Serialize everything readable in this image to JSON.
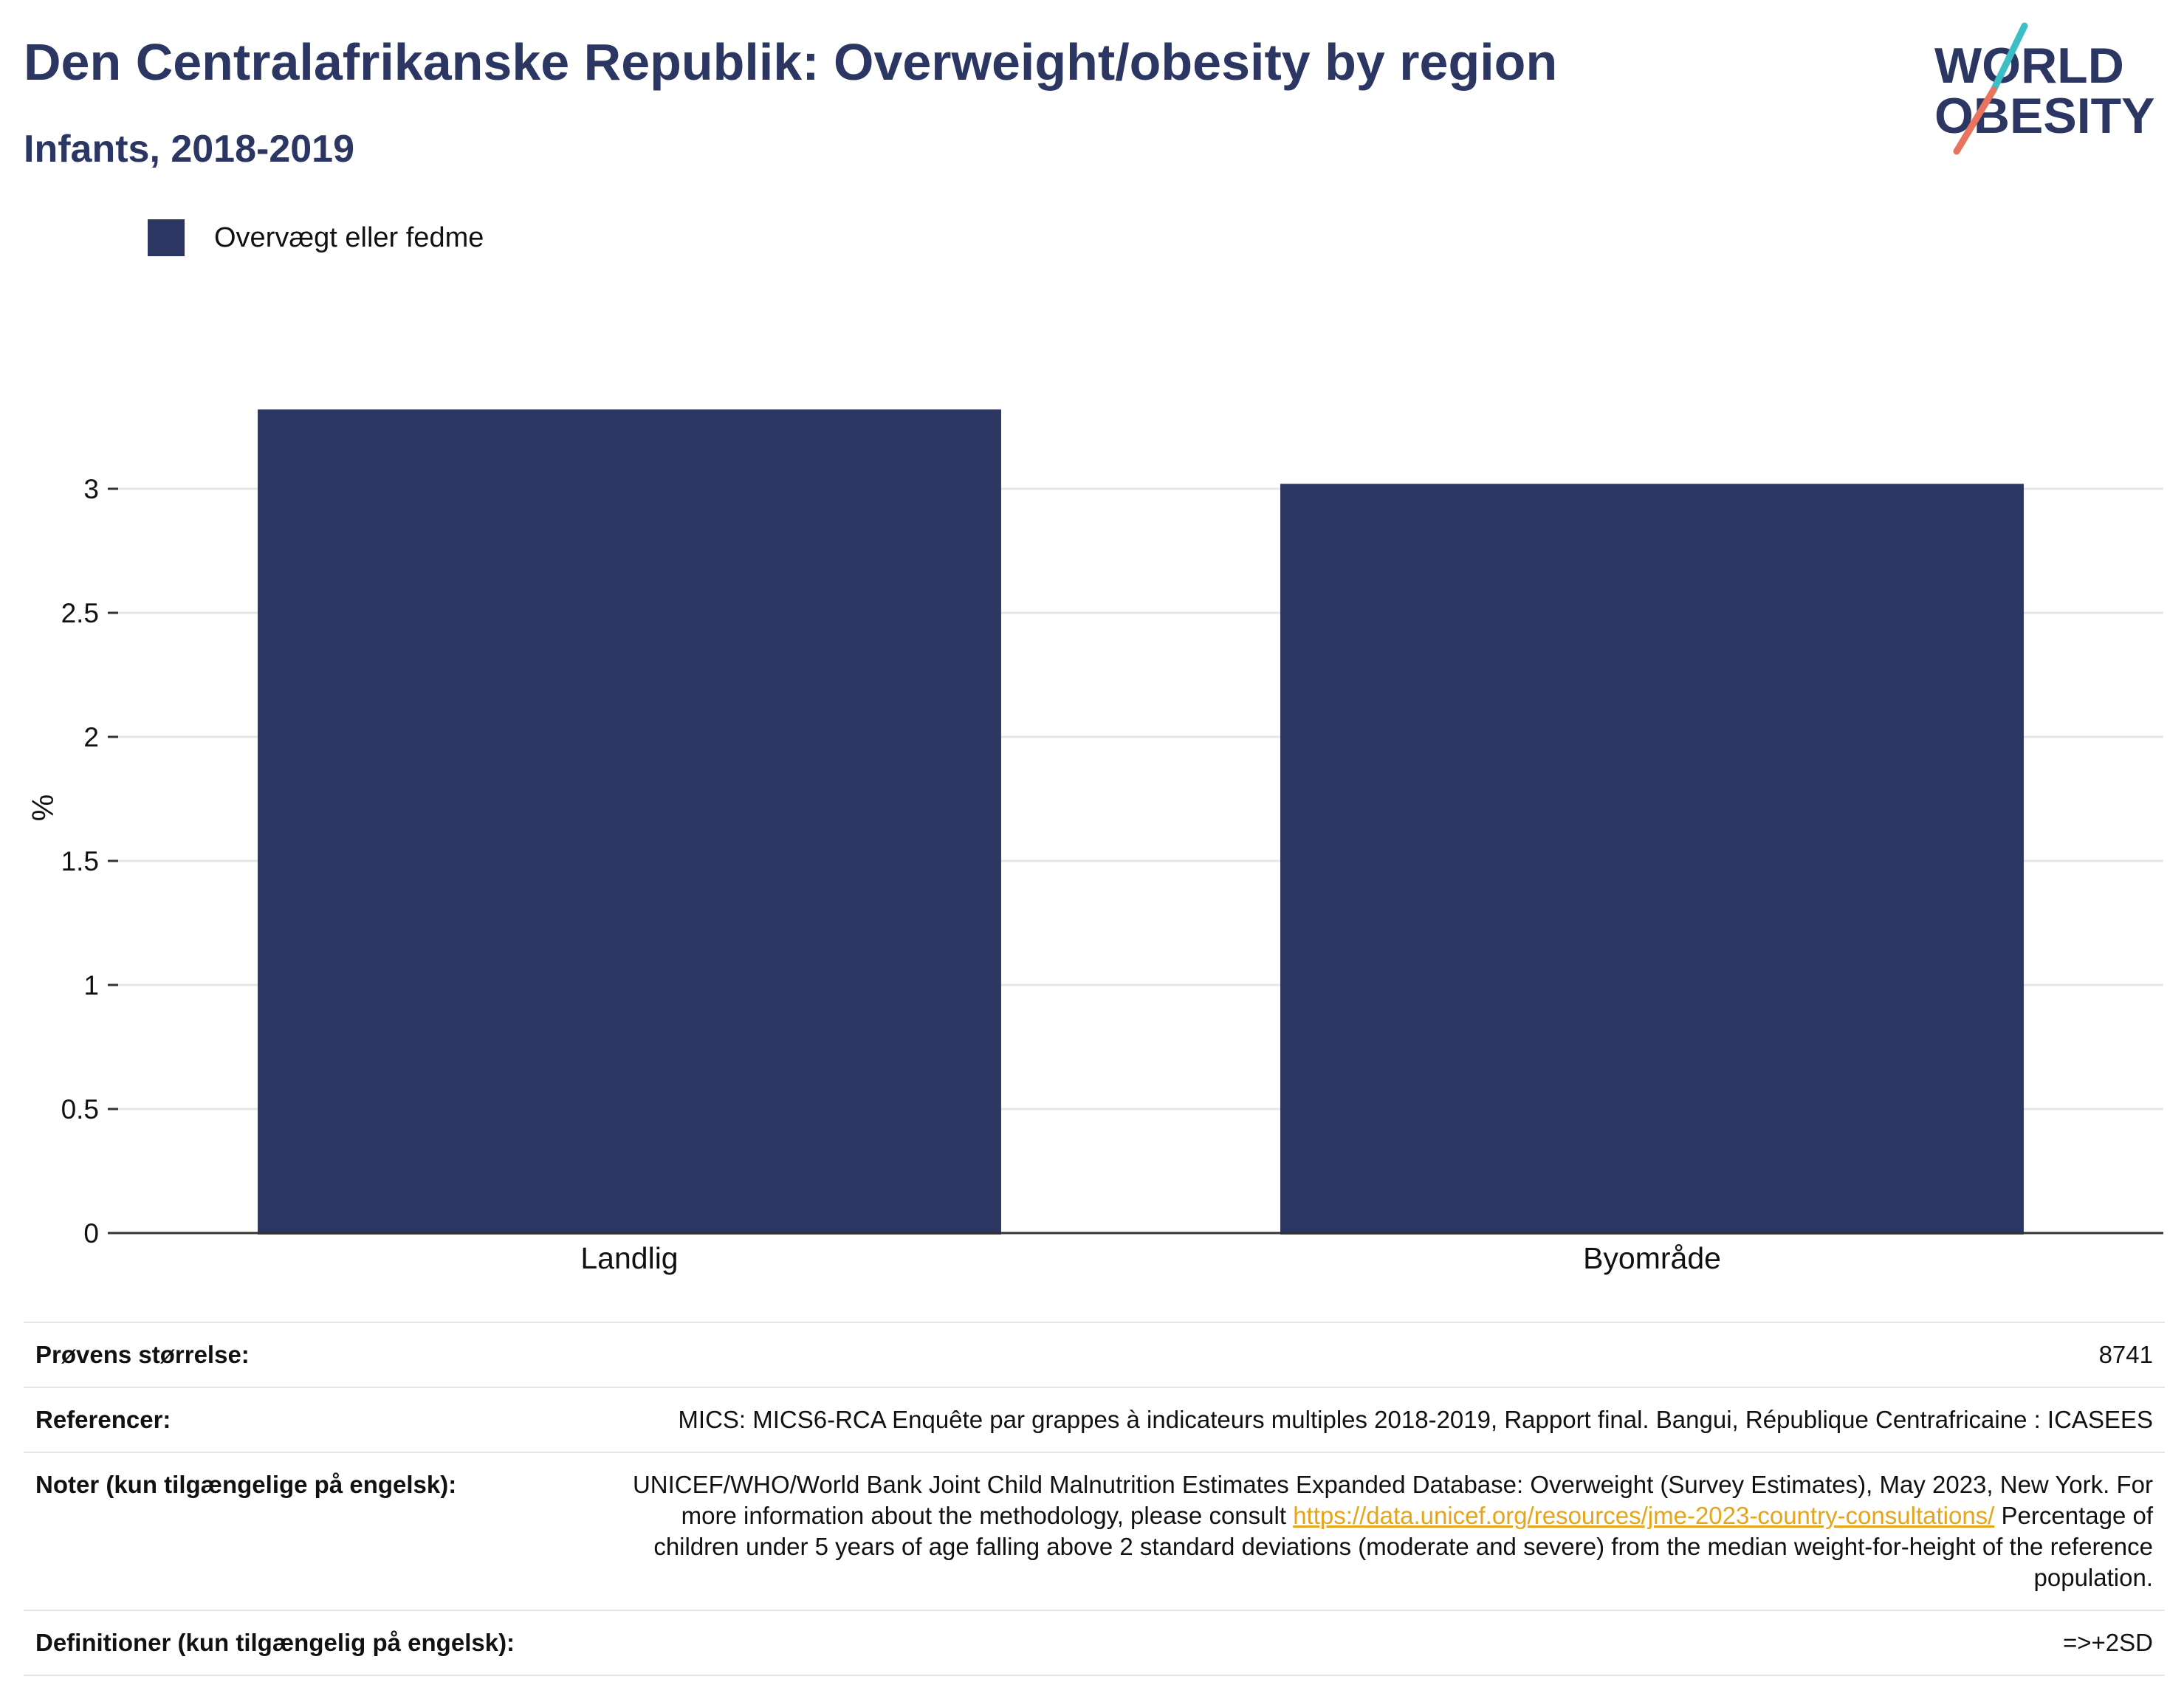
{
  "header": {
    "title": "Den Centralafrikanske Republik: Overweight/obesity by region",
    "subtitle": "Infants, 2018-2019"
  },
  "logo": {
    "line1": "WORLD",
    "line2": "OBESITY"
  },
  "colors": {
    "bar": "#2b3663",
    "title": "#2b3663",
    "grid": "#e6e6e6",
    "axis": "#333333",
    "link": "#e3a51b",
    "logo_teal": "#3bbfc4",
    "logo_coral": "#e8735e"
  },
  "chart_data": {
    "type": "bar",
    "categories": [
      "Landlig",
      "Byområde"
    ],
    "series": [
      {
        "name": "Overvægt eller fedme",
        "values": [
          3.32,
          3.02
        ]
      }
    ],
    "ylabel": "%",
    "xlabel": "",
    "ylim": [
      0,
      3.6
    ],
    "yticks": [
      0,
      0.5,
      1,
      1.5,
      2,
      2.5,
      3
    ],
    "ytick_labels": [
      "0",
      "0.5",
      "1",
      "1.5",
      "2",
      "2.5",
      "3"
    ],
    "grid": true,
    "legend_position": "top-left"
  },
  "info": {
    "sample_label": "Prøvens størrelse:",
    "sample_value": "8741",
    "references_label": "Referencer:",
    "references_value": "MICS: MICS6-RCA Enquête par grappes à indicateurs multiples 2018-2019, Rapport final. Bangui, République Centrafricaine : ICASEES",
    "notes_label": "Noter (kun tilgængelige på engelsk):",
    "notes_text_1": "UNICEF/WHO/World Bank Joint Child Malnutrition Estimates Expanded Database: Overweight (Survey Estimates), May 2023, New York. For more information about the methodology, please consult ",
    "notes_link": "https://data.unicef.org/resources/jme-2023-country-consultations/",
    "notes_text_2": " Percentage of children under 5 years of age falling above 2 standard deviations (moderate and severe) from the median weight-for-height of the reference population.",
    "definitions_label": "Definitioner (kun tilgængelig på engelsk):",
    "definitions_value": "=>+2SD"
  }
}
